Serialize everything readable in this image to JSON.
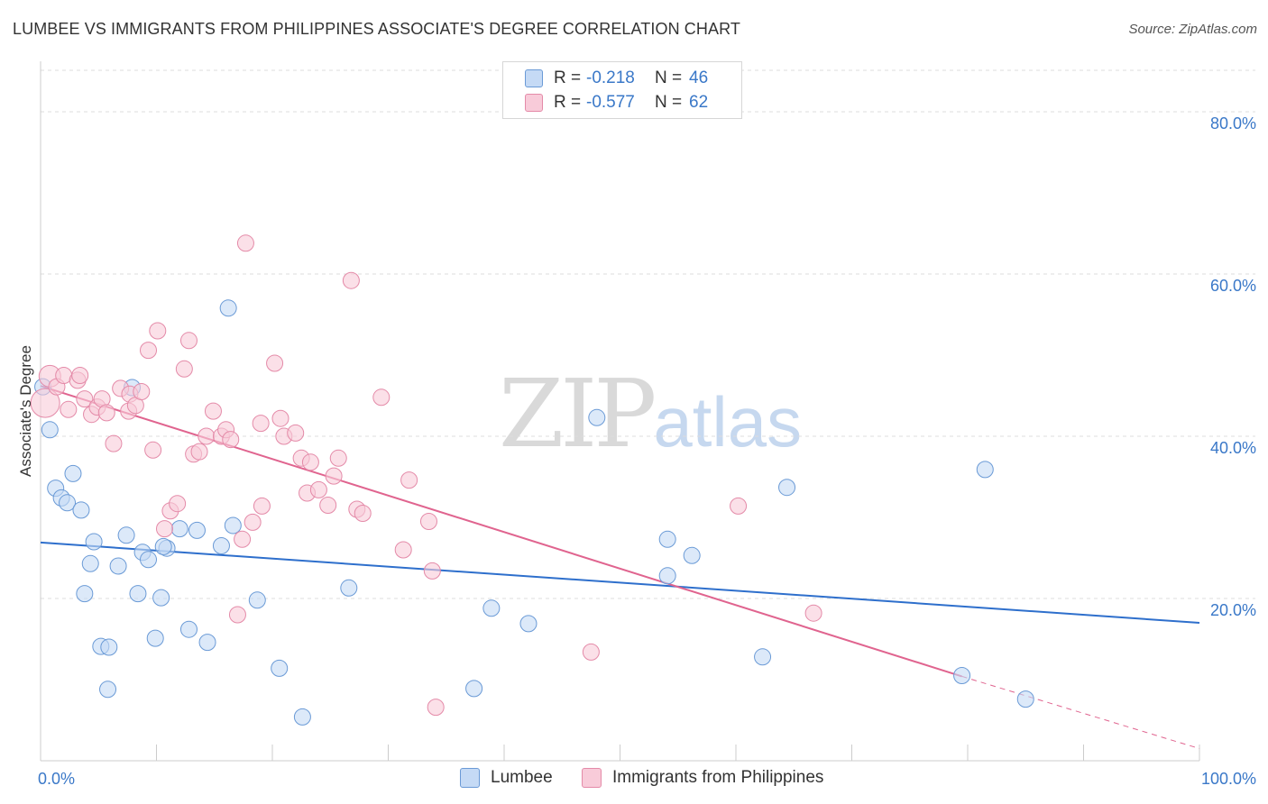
{
  "title": "LUMBEE VS IMMIGRANTS FROM PHILIPPINES ASSOCIATE'S DEGREE CORRELATION CHART",
  "source": "Source: ZipAtlas.com",
  "watermark": {
    "zip": "ZIP",
    "atlas": "atlas"
  },
  "colors": {
    "lumbee_fill": "#c5daf5",
    "lumbee_stroke": "#6a9ad6",
    "lumbee_line": "#2e6fcc",
    "phil_fill": "#f8cbd9",
    "phil_stroke": "#e48aa8",
    "phil_line": "#e0648f",
    "grid": "#dddddd",
    "axis_text": "#3a78c8"
  },
  "legend": {
    "r_label": "R =",
    "n_label": "N =",
    "lumbee": {
      "r": "-0.218",
      "n": "46"
    },
    "phil": {
      "r": "-0.577",
      "n": "62"
    }
  },
  "chart_data": {
    "type": "scatter",
    "title": "LUMBEE VS IMMIGRANTS FROM PHILIPPINES ASSOCIATE'S DEGREE CORRELATION CHART",
    "xlabel": "",
    "ylabel": "Associate's Degree",
    "xlim": [
      0,
      100
    ],
    "ylim": [
      0,
      86
    ],
    "x_tick_labels": [
      "0.0%",
      "100.0%"
    ],
    "y_ticks": [
      20,
      40,
      60,
      80
    ],
    "y_tick_labels": [
      "20.0%",
      "40.0%",
      "60.0%",
      "80.0%"
    ],
    "grid": true,
    "legend_position": "top-center",
    "series": [
      {
        "name": "Lumbee",
        "r": -0.218,
        "n": 46,
        "trend": {
          "x": [
            0,
            100
          ],
          "y": [
            26.9,
            17.0
          ]
        },
        "points": [
          [
            0.2,
            46.1
          ],
          [
            0.8,
            40.8
          ],
          [
            1.3,
            33.6
          ],
          [
            1.8,
            32.4
          ],
          [
            2.3,
            31.8
          ],
          [
            2.8,
            35.4
          ],
          [
            3.5,
            30.9
          ],
          [
            3.8,
            20.6
          ],
          [
            4.3,
            24.3
          ],
          [
            4.6,
            27.0
          ],
          [
            5.2,
            14.1
          ],
          [
            5.9,
            14.0
          ],
          [
            5.8,
            8.8
          ],
          [
            6.7,
            24.0
          ],
          [
            7.4,
            27.8
          ],
          [
            7.9,
            46.0
          ],
          [
            8.4,
            20.6
          ],
          [
            8.8,
            25.7
          ],
          [
            9.3,
            24.8
          ],
          [
            9.9,
            15.1
          ],
          [
            10.4,
            20.1
          ],
          [
            10.9,
            26.2
          ],
          [
            10.6,
            26.4
          ],
          [
            12.0,
            28.6
          ],
          [
            12.8,
            16.2
          ],
          [
            13.5,
            28.4
          ],
          [
            14.4,
            14.6
          ],
          [
            15.6,
            26.5
          ],
          [
            16.2,
            55.8
          ],
          [
            16.6,
            29.0
          ],
          [
            18.7,
            19.8
          ],
          [
            20.6,
            11.4
          ],
          [
            22.6,
            5.4
          ],
          [
            26.6,
            21.3
          ],
          [
            37.4,
            8.9
          ],
          [
            38.9,
            18.8
          ],
          [
            42.1,
            16.9
          ],
          [
            48.0,
            42.3
          ],
          [
            54.1,
            27.3
          ],
          [
            54.1,
            22.8
          ],
          [
            56.2,
            25.3
          ],
          [
            62.3,
            12.8
          ],
          [
            64.4,
            33.7
          ],
          [
            79.5,
            10.5
          ],
          [
            81.5,
            35.9
          ],
          [
            85.0,
            7.6
          ]
        ]
      },
      {
        "name": "Immigrants from Philippines",
        "r": -0.577,
        "n": 62,
        "trend": {
          "x": [
            0,
            79.5
          ],
          "y": [
            46.2,
            10.4
          ]
        },
        "trend_dashed": {
          "x": [
            79.5,
            100
          ],
          "y": [
            10.4,
            1.5
          ]
        },
        "points": [
          [
            0.4,
            44.1
          ],
          [
            0.8,
            47.4
          ],
          [
            1.4,
            46.1
          ],
          [
            2.0,
            47.5
          ],
          [
            2.4,
            43.3
          ],
          [
            3.2,
            46.9
          ],
          [
            3.4,
            47.5
          ],
          [
            3.8,
            44.6
          ],
          [
            4.4,
            42.7
          ],
          [
            4.9,
            43.6
          ],
          [
            5.3,
            44.6
          ],
          [
            5.7,
            42.9
          ],
          [
            6.3,
            39.1
          ],
          [
            6.9,
            45.9
          ],
          [
            7.7,
            45.2
          ],
          [
            7.6,
            43.1
          ],
          [
            8.2,
            43.8
          ],
          [
            8.7,
            45.5
          ],
          [
            9.7,
            38.3
          ],
          [
            9.3,
            50.6
          ],
          [
            10.1,
            53.0
          ],
          [
            10.7,
            28.6
          ],
          [
            11.2,
            30.8
          ],
          [
            11.8,
            31.7
          ],
          [
            12.4,
            48.3
          ],
          [
            12.8,
            51.8
          ],
          [
            13.2,
            37.8
          ],
          [
            13.7,
            38.1
          ],
          [
            14.3,
            40.0
          ],
          [
            14.9,
            43.1
          ],
          [
            15.6,
            40.0
          ],
          [
            16.0,
            40.8
          ],
          [
            16.4,
            39.6
          ],
          [
            17.0,
            18.0
          ],
          [
            17.4,
            27.3
          ],
          [
            17.7,
            63.8
          ],
          [
            18.3,
            29.4
          ],
          [
            19.1,
            31.4
          ],
          [
            19.0,
            41.6
          ],
          [
            20.2,
            49.0
          ],
          [
            20.7,
            42.2
          ],
          [
            21.0,
            40.0
          ],
          [
            22.0,
            40.4
          ],
          [
            22.5,
            37.3
          ],
          [
            23.0,
            33.0
          ],
          [
            23.3,
            36.8
          ],
          [
            24.0,
            33.4
          ],
          [
            24.8,
            31.5
          ],
          [
            25.3,
            35.1
          ],
          [
            25.7,
            37.3
          ],
          [
            26.8,
            59.2
          ],
          [
            27.3,
            31.0
          ],
          [
            27.8,
            30.5
          ],
          [
            29.4,
            44.8
          ],
          [
            31.3,
            26.0
          ],
          [
            31.8,
            34.6
          ],
          [
            33.5,
            29.5
          ],
          [
            33.8,
            23.4
          ],
          [
            34.1,
            6.6
          ],
          [
            47.5,
            13.4
          ],
          [
            60.2,
            31.4
          ],
          [
            66.7,
            18.2
          ]
        ]
      }
    ]
  }
}
